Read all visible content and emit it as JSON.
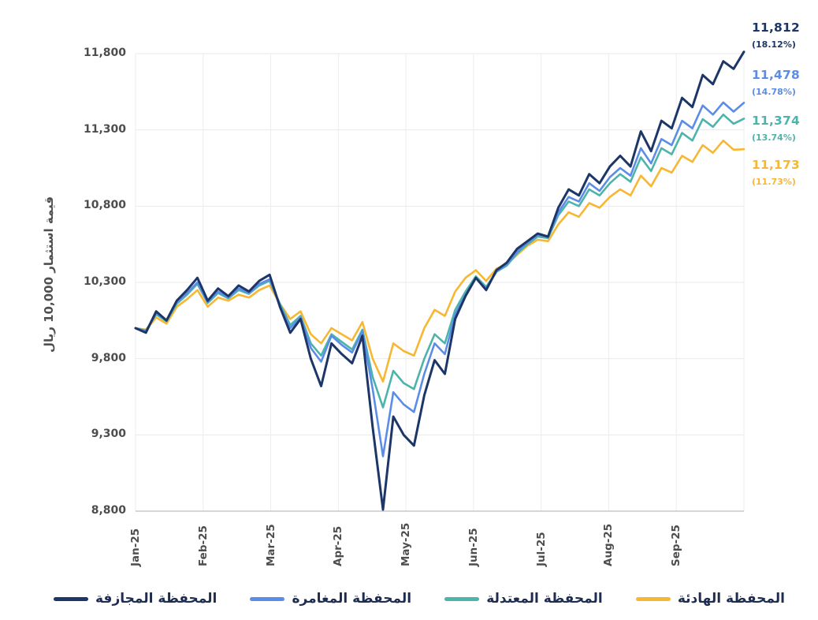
{
  "chart_data": {
    "type": "line",
    "title": "",
    "xlabel": "",
    "ylabel": "قيمة استثمار 10,000 ريال",
    "ylim": [
      8800,
      11800
    ],
    "y_ticks": [
      8800,
      9300,
      9800,
      10300,
      10800,
      11300,
      11800
    ],
    "y_tick_labels": [
      "8,800",
      "9,300",
      "9,800",
      "10,300",
      "10,800",
      "11,300",
      "11,800"
    ],
    "x_tick_labels": [
      "Jan-25",
      "Feb-25",
      "Mar-25",
      "Apr-25",
      "May-25",
      "Jun-25",
      "Jul-25",
      "Aug-25",
      "Sep-25"
    ],
    "x_note": "60 evenly spaced samples spanning Jan 2025 through end of Sep 2025",
    "grid": true,
    "legend_position": "bottom",
    "series": [
      {
        "name": "المحفظة المجازفة",
        "color": "#1c3667",
        "end_label": "11,812",
        "end_pct": "(18.12%)",
        "values": [
          10000,
          9970,
          10110,
          10050,
          10180,
          10250,
          10330,
          10180,
          10260,
          10210,
          10280,
          10240,
          10310,
          10350,
          10140,
          9970,
          10060,
          9800,
          9620,
          9900,
          9830,
          9770,
          9950,
          9350,
          8810,
          9420,
          9300,
          9230,
          9560,
          9790,
          9700,
          10060,
          10210,
          10330,
          10250,
          10380,
          10430,
          10520,
          10570,
          10620,
          10600,
          10790,
          10910,
          10870,
          11010,
          10950,
          11060,
          11130,
          11060,
          11290,
          11160,
          11360,
          11310,
          11510,
          11450,
          11660,
          11600,
          11750,
          11700,
          11812
        ]
      },
      {
        "name": "المحفظة المغامرة",
        "color": "#5b8de8",
        "end_label": "11,478",
        "end_pct": "(14.78%)",
        "values": [
          10000,
          9980,
          10100,
          10050,
          10170,
          10230,
          10300,
          10170,
          10240,
          10200,
          10260,
          10230,
          10290,
          10320,
          10150,
          10000,
          10070,
          9870,
          9780,
          9950,
          9890,
          9840,
          9980,
          9600,
          9160,
          9580,
          9500,
          9450,
          9700,
          9900,
          9830,
          10090,
          10220,
          10330,
          10260,
          10370,
          10420,
          10500,
          10560,
          10610,
          10600,
          10760,
          10860,
          10830,
          10950,
          10900,
          10990,
          11050,
          11000,
          11180,
          11080,
          11240,
          11200,
          11360,
          11310,
          11460,
          11400,
          11480,
          11420,
          11478
        ]
      },
      {
        "name": "المحفظة المعتدلة",
        "color": "#4db4ab",
        "end_label": "11,374",
        "end_pct": "(13.74%)",
        "values": [
          10000,
          9985,
          10090,
          10045,
          10160,
          10220,
          10290,
          10165,
          10230,
          10195,
          10250,
          10225,
          10280,
          10310,
          10160,
          10020,
          10080,
          9900,
          9820,
          9960,
          9910,
          9860,
          9990,
          9680,
          9480,
          9720,
          9640,
          9600,
          9800,
          9960,
          9900,
          10120,
          10240,
          10340,
          10270,
          10370,
          10410,
          10490,
          10550,
          10600,
          10590,
          10740,
          10830,
          10800,
          10910,
          10870,
          10950,
          11010,
          10960,
          11120,
          11030,
          11180,
          11140,
          11280,
          11230,
          11370,
          11320,
          11400,
          11340,
          11374
        ]
      },
      {
        "name": "المحفظة الهادئة",
        "color": "#f7b733",
        "end_label": "11,173",
        "end_pct": "(11.73%)",
        "values": [
          10000,
          9990,
          10070,
          10030,
          10140,
          10190,
          10250,
          10140,
          10200,
          10180,
          10220,
          10200,
          10250,
          10280,
          10160,
          10060,
          10110,
          9960,
          9900,
          10000,
          9960,
          9920,
          10040,
          9800,
          9650,
          9900,
          9850,
          9820,
          10000,
          10120,
          10080,
          10240,
          10330,
          10380,
          10310,
          10390,
          10420,
          10480,
          10540,
          10580,
          10570,
          10680,
          10760,
          10730,
          10820,
          10790,
          10860,
          10910,
          10870,
          11000,
          10930,
          11050,
          11020,
          11130,
          11090,
          11200,
          11150,
          11230,
          11170,
          11173
        ]
      }
    ]
  }
}
